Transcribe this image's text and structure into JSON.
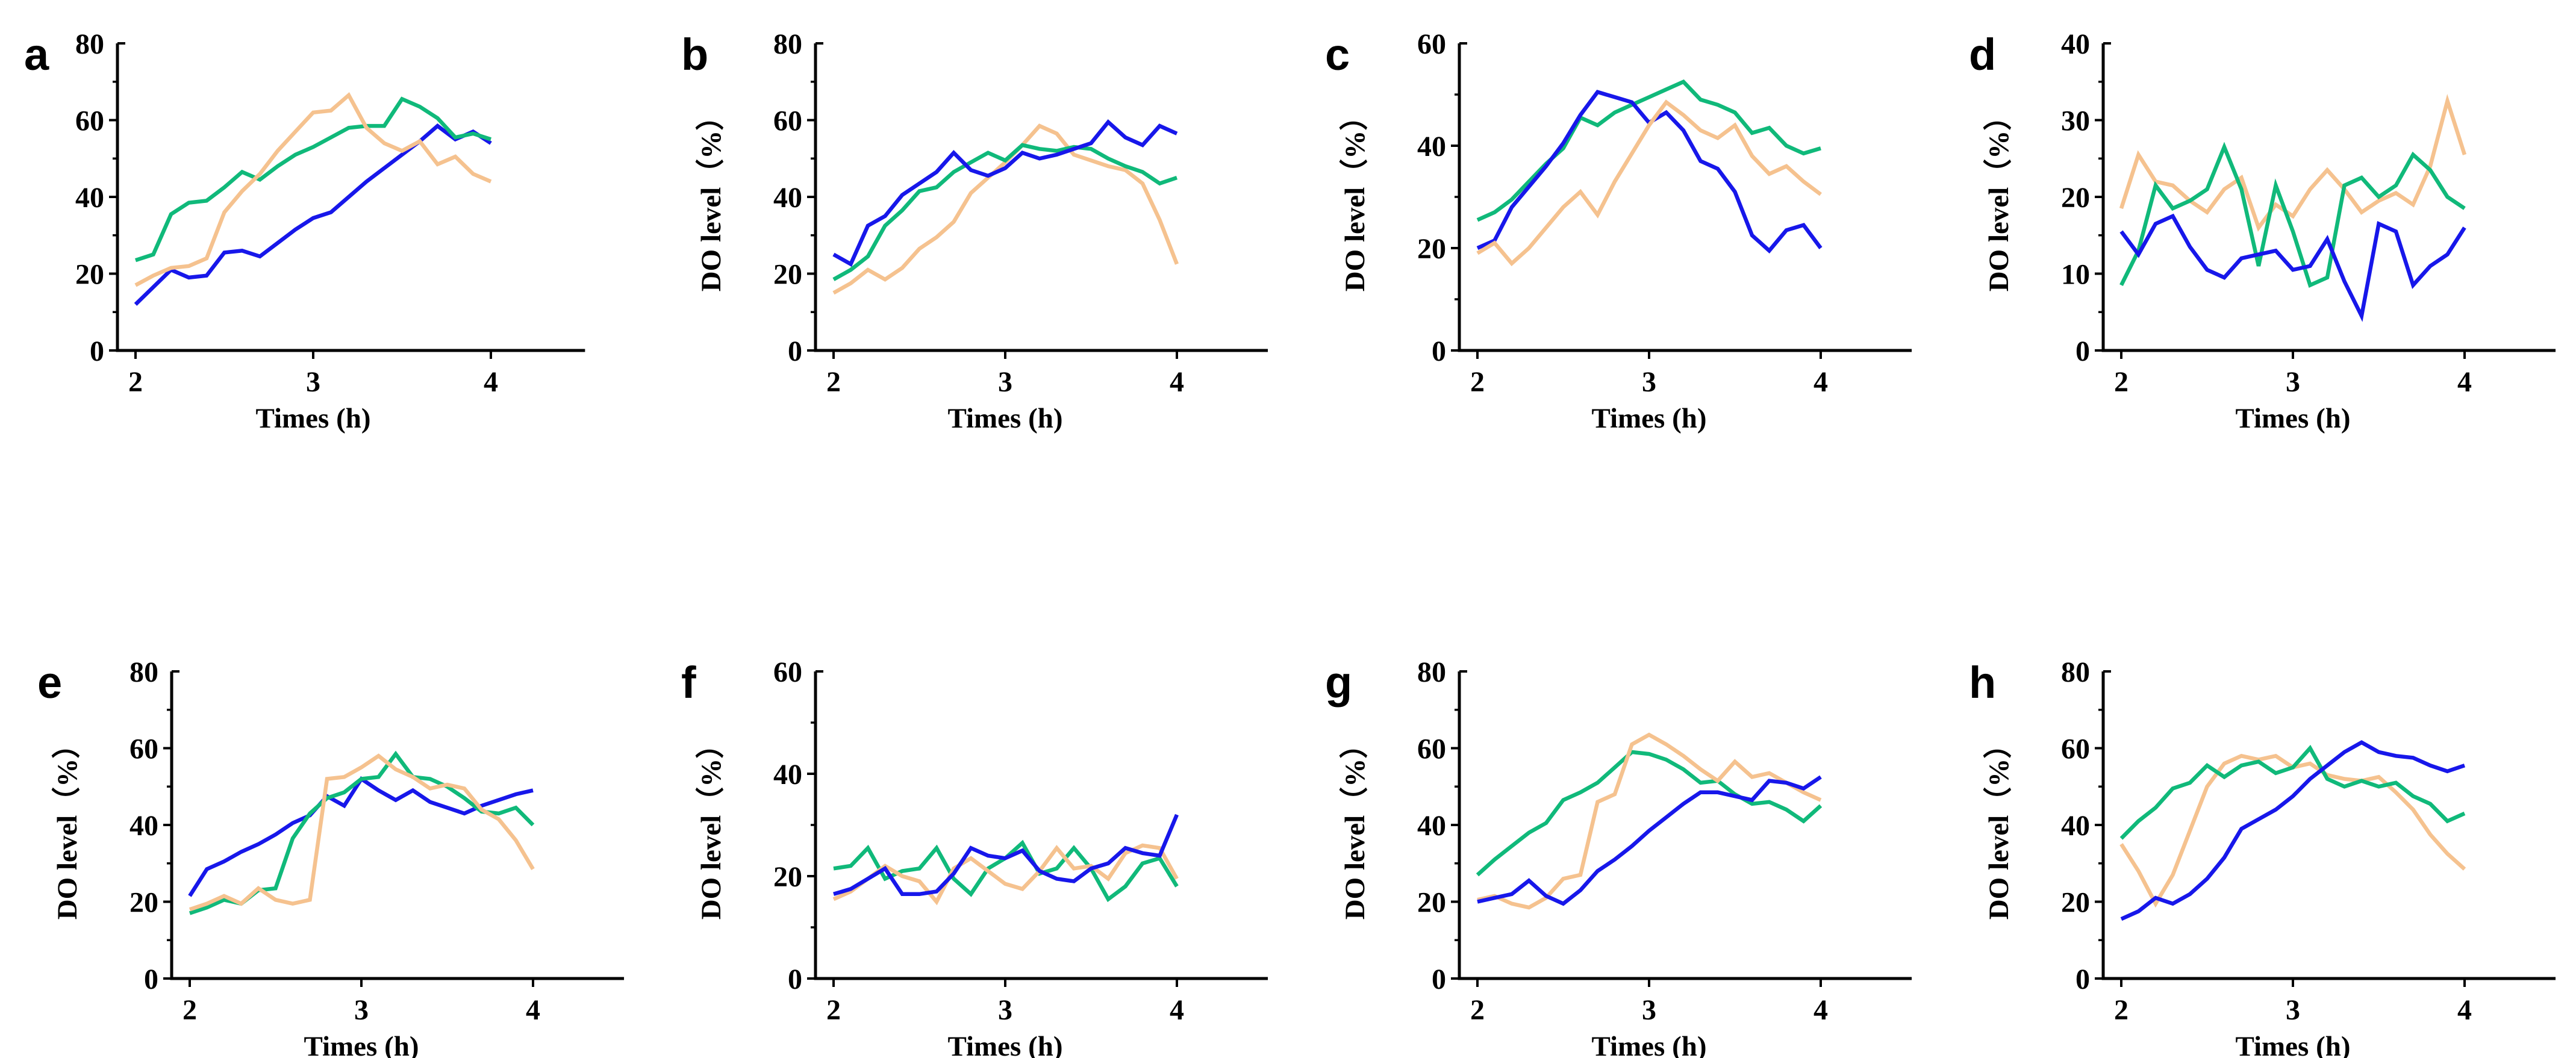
{
  "colors": {
    "blue": "#1717EA",
    "green": "#10B97A",
    "orange": "#F5C28F",
    "axis": "#000000"
  },
  "axes_text": {
    "x_label": "Times (h)",
    "y_label": "DO level（%）"
  },
  "chart_data": [
    {
      "label": "a",
      "type": "line",
      "xlabel": "Times (h)",
      "ylabel": null,
      "ylim": [
        0,
        80
      ],
      "y_major_step": 20,
      "x_ticks": [
        2,
        3,
        4
      ],
      "x_start": 2,
      "x_step": 0.1,
      "series": [
        {
          "name": "blue",
          "color": "blue",
          "values": [
            12,
            16.5,
            21,
            19,
            19.5,
            25.5,
            26,
            24.5,
            28,
            31.5,
            34.5,
            36,
            40,
            44,
            47.5,
            51,
            54.5,
            58.5,
            55,
            57,
            54
          ]
        },
        {
          "name": "green",
          "color": "green",
          "values": [
            23.5,
            25,
            35.5,
            38.5,
            39,
            42.5,
            46.5,
            44.5,
            48,
            51,
            53,
            55.5,
            58,
            58.5,
            58.5,
            65.5,
            63.5,
            60.5,
            55.5,
            56.5,
            55
          ]
        },
        {
          "name": "orange",
          "color": "orange",
          "values": [
            17,
            19.5,
            21.5,
            22,
            24,
            36,
            41.5,
            46,
            52,
            57,
            62,
            62.5,
            66.5,
            58,
            54,
            52,
            54.5,
            48.5,
            50.5,
            46,
            44
          ]
        }
      ]
    },
    {
      "label": "b",
      "type": "line",
      "xlabel": "Times (h)",
      "ylabel": "DO level（%）",
      "ylim": [
        0,
        80
      ],
      "y_major_step": 20,
      "x_ticks": [
        2,
        3,
        4
      ],
      "x_start": 2,
      "x_step": 0.1,
      "series": [
        {
          "name": "orange",
          "color": "orange",
          "values": [
            15,
            17.5,
            21,
            18.5,
            21.5,
            26.5,
            29.5,
            33.5,
            41,
            45,
            49,
            53.5,
            58.5,
            56.5,
            51,
            49.5,
            48,
            47,
            43.5,
            34,
            22.5
          ]
        },
        {
          "name": "green",
          "color": "green",
          "values": [
            18.5,
            21,
            24.5,
            32.5,
            36.5,
            41.5,
            42.5,
            46.5,
            49,
            51.5,
            49.5,
            53.5,
            52.5,
            52,
            53,
            52.5,
            50,
            48,
            46.5,
            43.5,
            45
          ]
        },
        {
          "name": "blue",
          "color": "blue",
          "values": [
            25,
            22.5,
            32.5,
            35,
            40.5,
            43.5,
            46.5,
            51.5,
            47,
            45.5,
            47.5,
            51.5,
            50,
            51,
            52.5,
            54,
            59.5,
            55.5,
            53.5,
            58.5,
            56.5
          ]
        }
      ]
    },
    {
      "label": "c",
      "type": "line",
      "xlabel": "Times (h)",
      "ylabel": "DO level（%）",
      "ylim": [
        0,
        60
      ],
      "y_major_step": 20,
      "x_ticks": [
        2,
        3,
        4
      ],
      "x_start": 2,
      "x_step": 0.1,
      "series": [
        {
          "name": "green",
          "color": "green",
          "values": [
            25.5,
            27,
            29.5,
            33,
            36.5,
            39.5,
            45.5,
            44,
            46.5,
            48,
            49.5,
            51,
            52.5,
            49,
            48,
            46.5,
            42.5,
            43.5,
            40,
            38.5,
            39.5
          ]
        },
        {
          "name": "blue",
          "color": "blue",
          "values": [
            20,
            21.5,
            28,
            32,
            36,
            40.5,
            46,
            50.5,
            49.5,
            48.5,
            44.5,
            46.5,
            43,
            37,
            35.5,
            31,
            22.5,
            19.5,
            23.5,
            24.5,
            20
          ]
        },
        {
          "name": "orange",
          "color": "orange",
          "values": [
            19,
            21,
            17,
            20,
            24,
            28,
            31,
            26.5,
            33,
            38.5,
            44,
            48.5,
            46,
            43,
            41.5,
            44,
            38,
            34.5,
            36,
            33,
            30.5
          ]
        }
      ]
    },
    {
      "label": "d",
      "type": "line",
      "xlabel": "Times (h)",
      "ylabel": "DO level（%）",
      "ylim": [
        0,
        40
      ],
      "y_major_step": 10,
      "x_ticks": [
        2,
        3,
        4
      ],
      "x_start": 2,
      "x_step": 0.1,
      "series": [
        {
          "name": "orange",
          "color": "orange",
          "values": [
            18.5,
            25.5,
            22,
            21.5,
            19.5,
            18,
            21,
            22.5,
            16,
            19,
            17.5,
            21,
            23.5,
            21,
            18,
            19.5,
            20.5,
            19,
            24,
            32.5,
            25.5
          ]
        },
        {
          "name": "green",
          "color": "green",
          "values": [
            8.5,
            13,
            21.5,
            18.5,
            19.5,
            21,
            26.5,
            21,
            11,
            21.5,
            15.5,
            8.5,
            9.5,
            21.5,
            22.5,
            20,
            21.5,
            25.5,
            23.5,
            20,
            18.5
          ]
        },
        {
          "name": "blue",
          "color": "blue",
          "values": [
            15.5,
            12.5,
            16.5,
            17.5,
            13.5,
            10.5,
            9.5,
            12,
            12.5,
            13,
            10.5,
            11,
            14.5,
            9,
            4.5,
            16.5,
            15.5,
            8.5,
            11,
            12.5,
            16
          ]
        }
      ]
    },
    {
      "label": "e",
      "type": "line",
      "xlabel": "Times (h)",
      "ylabel": "DO level（%）",
      "ylim": [
        0,
        80
      ],
      "y_major_step": 20,
      "x_ticks": [
        2,
        3,
        4
      ],
      "x_start": 2,
      "x_step": 0.1,
      "series": [
        {
          "name": "blue",
          "color": "blue",
          "values": [
            21.5,
            28.5,
            30.5,
            33,
            35,
            37.5,
            40.5,
            42.5,
            47.5,
            45,
            52,
            49,
            46.5,
            49,
            46,
            44.5,
            43,
            45,
            46.5,
            48,
            49
          ]
        },
        {
          "name": "green",
          "color": "green",
          "values": [
            17,
            18.5,
            20.5,
            19.5,
            23,
            23.5,
            36.5,
            43,
            47,
            48.5,
            52,
            52.5,
            58.5,
            52.5,
            52,
            50,
            47,
            43.5,
            43,
            44.5,
            40
          ]
        },
        {
          "name": "orange",
          "color": "orange",
          "values": [
            18,
            19.5,
            21.5,
            19.5,
            23.5,
            20.5,
            19.5,
            20.5,
            52,
            52.5,
            55,
            58,
            54.5,
            52.5,
            49.5,
            50.5,
            49.5,
            44,
            41.5,
            36,
            28.5
          ]
        }
      ]
    },
    {
      "label": "f",
      "type": "line",
      "xlabel": "Times (h)",
      "ylabel": "DO level（%）",
      "ylim": [
        0,
        60
      ],
      "y_major_step": 20,
      "x_ticks": [
        2,
        3,
        4
      ],
      "x_start": 2,
      "x_step": 0.1,
      "series": [
        {
          "name": "green",
          "color": "green",
          "values": [
            21.5,
            22,
            25.5,
            19.5,
            21,
            21.5,
            25.5,
            19.5,
            16.5,
            21.5,
            23.5,
            26.5,
            20.5,
            21.5,
            25.5,
            21.5,
            15.5,
            18,
            22.5,
            23.5,
            18
          ]
        },
        {
          "name": "orange",
          "color": "orange",
          "values": [
            15.5,
            17,
            19.5,
            22,
            20,
            19,
            15,
            21.5,
            23.5,
            21,
            18.5,
            17.5,
            21,
            25.5,
            21.5,
            22,
            19.5,
            24.5,
            26,
            25.5,
            19.5
          ]
        },
        {
          "name": "blue",
          "color": "blue",
          "values": [
            16.5,
            17.5,
            19.5,
            21.5,
            16.5,
            16.5,
            17,
            20.5,
            25.5,
            24,
            23.5,
            25,
            21,
            19.5,
            19,
            21.5,
            22.5,
            25.5,
            24.5,
            24,
            32
          ]
        }
      ]
    },
    {
      "label": "g",
      "type": "line",
      "xlabel": "Times (h)",
      "ylabel": "DO level（%）",
      "ylim": [
        0,
        80
      ],
      "y_major_step": 20,
      "x_ticks": [
        2,
        3,
        4
      ],
      "x_start": 2,
      "x_step": 0.1,
      "series": [
        {
          "name": "green",
          "color": "green",
          "values": [
            27,
            31,
            34.5,
            38,
            40.5,
            46.5,
            48.5,
            51,
            55,
            59,
            58.5,
            57,
            54.5,
            51,
            51.5,
            48,
            45.5,
            46,
            44,
            41,
            45
          ]
        },
        {
          "name": "orange",
          "color": "orange",
          "values": [
            20.5,
            21.5,
            19.5,
            18.5,
            21,
            26,
            27,
            46,
            48,
            61,
            63.5,
            61,
            58,
            54.5,
            51.5,
            56.5,
            52.5,
            53.5,
            51,
            48.5,
            46.5
          ]
        },
        {
          "name": "blue",
          "color": "blue",
          "values": [
            20,
            21,
            22,
            25.5,
            21.5,
            19.5,
            23,
            28,
            31,
            34.5,
            38.5,
            42,
            45.5,
            48.5,
            48.5,
            47.5,
            46.5,
            51.5,
            51,
            49.5,
            52.5
          ]
        }
      ]
    },
    {
      "label": "h",
      "type": "line",
      "xlabel": "Times (h)",
      "ylabel": "DO level（%）",
      "ylim": [
        0,
        80
      ],
      "y_major_step": 20,
      "x_ticks": [
        2,
        3,
        4
      ],
      "x_start": 2,
      "x_step": 0.1,
      "series": [
        {
          "name": "orange",
          "color": "orange",
          "values": [
            35,
            28,
            19.5,
            27,
            38.5,
            50,
            56,
            58,
            57,
            58,
            55,
            56,
            53,
            52,
            51.5,
            52.5,
            48.5,
            44,
            37.5,
            32.5,
            28.5
          ]
        },
        {
          "name": "green",
          "color": "green",
          "values": [
            36.5,
            41,
            44.5,
            49.5,
            51,
            55.5,
            52.5,
            55.5,
            56.5,
            53.5,
            55,
            60,
            52,
            50,
            51.5,
            50,
            51,
            47.5,
            45.5,
            41,
            43
          ]
        },
        {
          "name": "blue",
          "color": "blue",
          "values": [
            15.5,
            17.5,
            21,
            19.5,
            22,
            26,
            31.5,
            39,
            41.5,
            44,
            47.5,
            52,
            55.5,
            59,
            61.5,
            59,
            58,
            57.5,
            55.5,
            54,
            55.5
          ]
        }
      ]
    }
  ]
}
